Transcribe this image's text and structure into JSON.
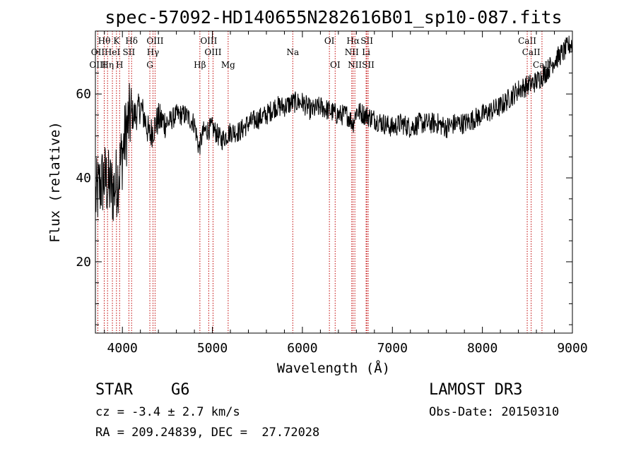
{
  "chart_data": {
    "type": "line",
    "title": "spec-57092-HD140655N282616B01_sp10-087.fits",
    "xlabel": "Wavelength (Å)",
    "ylabel": "Flux (relative)",
    "xlim": [
      3700,
      9000
    ],
    "ylim": [
      3,
      75
    ],
    "xticks": [
      "4000",
      "5000",
      "6000",
      "7000",
      "8000",
      "9000"
    ],
    "yticks": [
      "20",
      "40",
      "60"
    ],
    "series": [
      {
        "x": [
          3700,
          3750,
          3800,
          3850,
          3900,
          3950,
          4000,
          4050,
          4100,
          4150,
          4200,
          4250,
          4300,
          4350,
          4400,
          4500,
          4600,
          4700,
          4800,
          4850,
          4900,
          5000,
          5100,
          5200,
          5300,
          5400,
          5500,
          5600,
          5700,
          5800,
          5900,
          6000,
          6100,
          6200,
          6300,
          6400,
          6500,
          6563,
          6600,
          6700,
          6800,
          6900,
          7000,
          7100,
          7200,
          7300,
          7400,
          7500,
          7600,
          7700,
          7800,
          7900,
          8000,
          8100,
          8200,
          8300,
          8400,
          8500,
          8600,
          8700,
          8800,
          8900,
          8980
        ],
        "y": [
          35,
          38,
          40,
          38,
          37,
          40,
          46,
          52,
          55,
          55,
          57,
          54,
          50,
          52,
          54,
          53,
          55,
          55,
          53,
          47,
          51,
          52,
          49,
          51,
          51,
          53,
          54,
          55,
          57,
          57,
          58,
          58,
          56,
          57,
          56,
          55,
          55,
          53,
          56,
          55,
          54,
          53,
          52,
          53,
          52,
          53,
          53,
          53,
          52,
          53,
          53,
          54,
          55,
          56,
          57,
          59,
          61,
          62,
          63,
          65,
          68,
          70,
          72
        ]
      }
    ],
    "spectral_lines": [
      {
        "label": "Hθ",
        "x": 3798,
        "row": 1
      },
      {
        "label": "K",
        "x": 3934,
        "row": 1
      },
      {
        "label": "Hδ",
        "x": 4102,
        "row": 1
      },
      {
        "label": "OIII",
        "x": 4363,
        "row": 1
      },
      {
        "label": "OIII",
        "x": 4959,
        "row": 1
      },
      {
        "label": "OI",
        "x": 6300,
        "row": 1
      },
      {
        "label": "Hα",
        "x": 6563,
        "row": 1
      },
      {
        "label": "SII",
        "x": 6716,
        "row": 1
      },
      {
        "label": "CaII",
        "x": 8498,
        "row": 1
      },
      {
        "label": "OII",
        "x": 3727,
        "row": 2
      },
      {
        "label": "HeI",
        "x": 3889,
        "row": 2
      },
      {
        "label": "SII",
        "x": 4072,
        "row": 2
      },
      {
        "label": "Hγ",
        "x": 4340,
        "row": 2
      },
      {
        "label": "OIII",
        "x": 5007,
        "row": 2
      },
      {
        "label": "Na",
        "x": 5893,
        "row": 2
      },
      {
        "label": "NII",
        "x": 6548,
        "row": 2
      },
      {
        "label": "Li",
        "x": 6708,
        "row": 2
      },
      {
        "label": "CaII",
        "x": 8542,
        "row": 2
      },
      {
        "label": "OIII",
        "x": 3727,
        "row": 3
      },
      {
        "label": "Hη",
        "x": 3835,
        "row": 3
      },
      {
        "label": "H",
        "x": 3969,
        "row": 3
      },
      {
        "label": "G",
        "x": 4305,
        "row": 3
      },
      {
        "label": "Hβ",
        "x": 4861,
        "row": 3
      },
      {
        "label": "Mg",
        "x": 5175,
        "row": 3
      },
      {
        "label": "OI",
        "x": 6364,
        "row": 3
      },
      {
        "label": "NII",
        "x": 6583,
        "row": 3
      },
      {
        "label": "SII",
        "x": 6731,
        "row": 3
      },
      {
        "label": "CaII",
        "x": 8662,
        "row": 3
      }
    ],
    "colors": {
      "spectrum": "#000000",
      "lines": "#c00000"
    }
  },
  "info": {
    "class": "STAR",
    "subclass": "G6",
    "survey": "LAMOST DR3",
    "cz": "cz = -3.4 ± 2.7 km/s",
    "obsdate": "Obs-Date: 20150310",
    "radec": "RA = 209.24839, DEC =  27.72028"
  }
}
